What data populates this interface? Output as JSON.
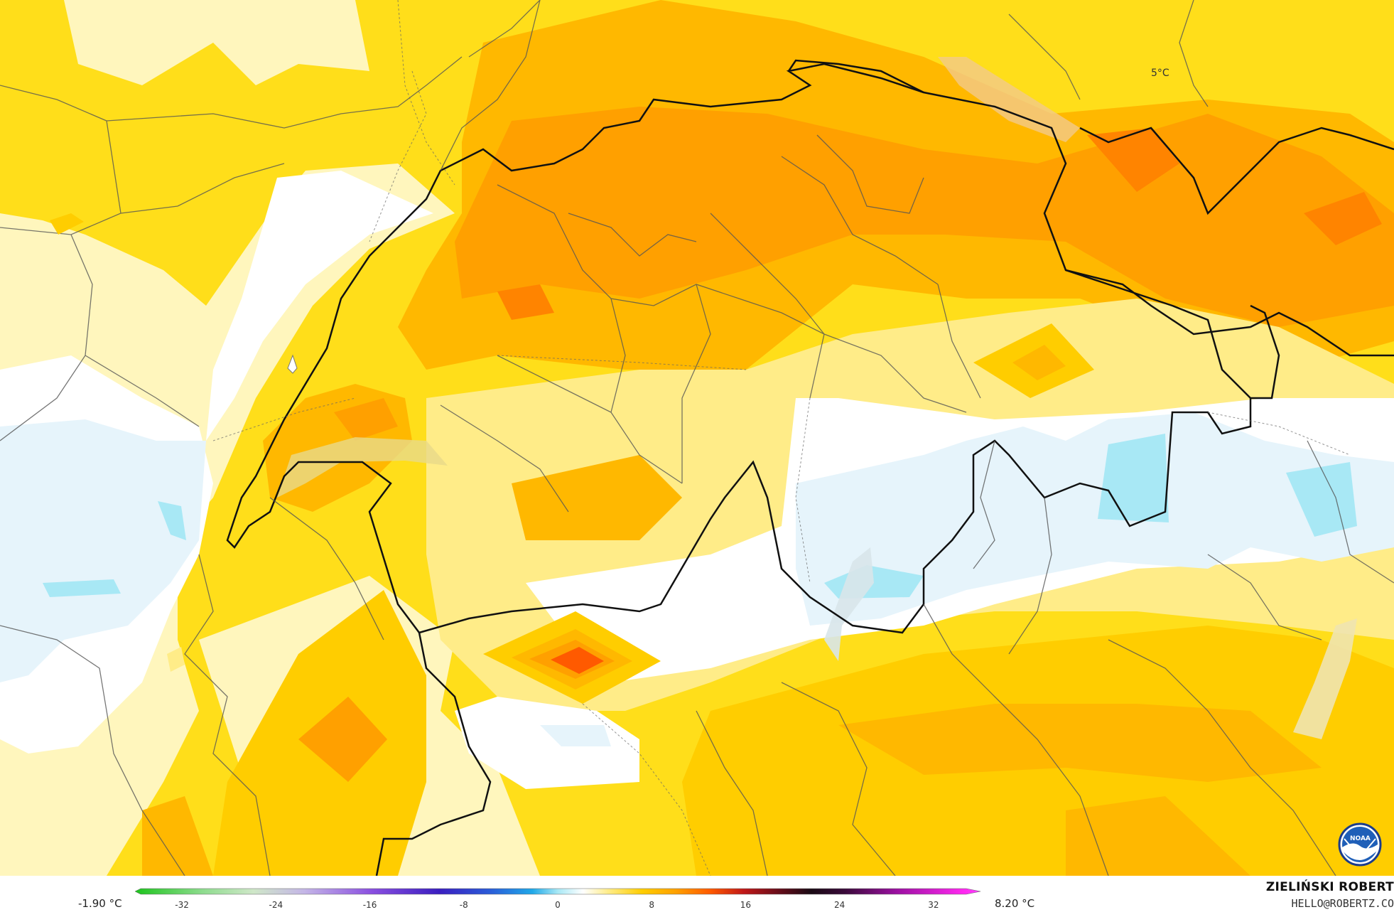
{
  "map": {
    "contour_label": "5°C",
    "colors": {
      "white": "#ffffff",
      "pale_blue": "#e6f4fb",
      "light_blue": "#a8e8f5",
      "pale_yellow": "#fff6bd",
      "light_yellow": "#ffec88",
      "yellow": "#ffde1a",
      "gold": "#ffcd00",
      "light_orange": "#ffb800",
      "orange": "#ffa000",
      "dark_orange": "#ff8400",
      "red_orange": "#ff5a00"
    },
    "logo_icon": "noaa-logo-icon"
  },
  "legend": {
    "min_label": "-1.90 °C",
    "max_label": "8.20 °C",
    "ticks": [
      "-32",
      "-24",
      "-16",
      "-8",
      "0",
      "8",
      "16",
      "24",
      "32"
    ],
    "tick_values": [
      -32,
      -24,
      -16,
      -8,
      0,
      8,
      16,
      24,
      32
    ],
    "range": [
      -36,
      36
    ]
  },
  "credit": {
    "name": "ZIELIŃSKI ROBERT",
    "email": "HELLO@ROBERTZ.CO"
  }
}
